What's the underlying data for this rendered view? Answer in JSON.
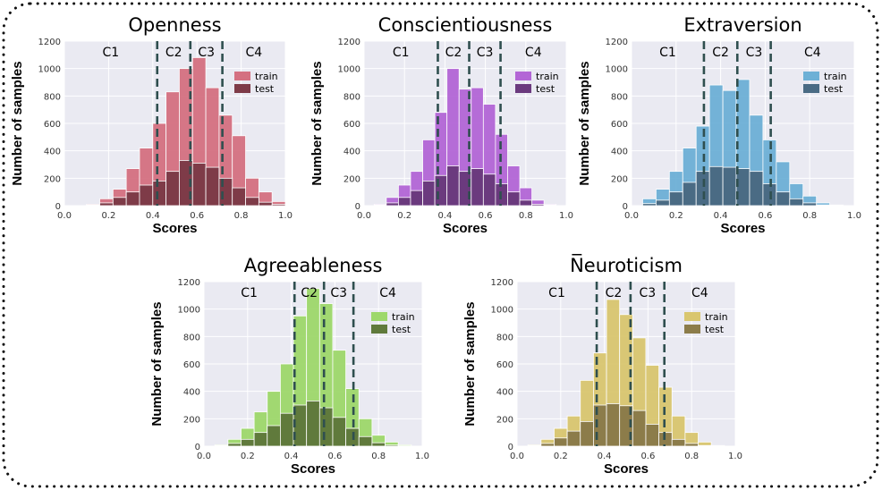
{
  "chart_data": [
    {
      "type": "bar",
      "title": "Openness",
      "xlabel": "Scores",
      "ylabel": "Number of samples",
      "xlim": [
        0.0,
        1.0
      ],
      "ylim": [
        0,
        1200
      ],
      "xticks": [
        "0.0",
        "0.2",
        "0.4",
        "0.6",
        "0.8",
        "1.0"
      ],
      "yticks": [
        "0",
        "200",
        "400",
        "600",
        "800",
        "1000",
        "1200"
      ],
      "bin_edges": [
        0.1,
        0.16,
        0.22,
        0.28,
        0.34,
        0.4,
        0.46,
        0.52,
        0.58,
        0.64,
        0.7,
        0.76,
        0.82,
        0.88,
        0.94,
        1.0
      ],
      "series": [
        {
          "name": "train",
          "color": "#d47081",
          "values": [
            10,
            50,
            120,
            270,
            420,
            600,
            830,
            1000,
            1080,
            860,
            660,
            510,
            200,
            100,
            30
          ]
        },
        {
          "name": "test",
          "color": "#7e3b48",
          "values": [
            5,
            20,
            60,
            100,
            150,
            180,
            250,
            330,
            310,
            280,
            200,
            130,
            60,
            25,
            10
          ]
        }
      ],
      "thresholds": [
        0.42,
        0.57,
        0.715
      ],
      "clusters": [
        "C1",
        "C2",
        "C3",
        "C4"
      ],
      "grid": true,
      "legend": "right"
    },
    {
      "type": "bar",
      "title": "Conscientiousness",
      "xlabel": "Scores",
      "ylabel": "Number of samples",
      "xlim": [
        0.0,
        1.0
      ],
      "ylim": [
        0,
        1200
      ],
      "xticks": [
        "0.0",
        "0.2",
        "0.4",
        "0.6",
        "0.8",
        "1.0"
      ],
      "yticks": [
        "0",
        "200",
        "400",
        "600",
        "800",
        "1000",
        "1200"
      ],
      "bin_edges": [
        0.05,
        0.11,
        0.17,
        0.23,
        0.29,
        0.35,
        0.41,
        0.47,
        0.53,
        0.59,
        0.65,
        0.71,
        0.77,
        0.83,
        0.89,
        0.95
      ],
      "series": [
        {
          "name": "train",
          "color": "#b366d6",
          "values": [
            10,
            60,
            150,
            250,
            480,
            680,
            1000,
            850,
            860,
            740,
            520,
            290,
            130,
            40,
            10
          ]
        },
        {
          "name": "test",
          "color": "#6b3a7e",
          "values": [
            5,
            20,
            60,
            110,
            180,
            220,
            290,
            250,
            270,
            230,
            160,
            100,
            40,
            10,
            5
          ]
        }
      ],
      "thresholds": [
        0.365,
        0.52,
        0.675
      ],
      "clusters": [
        "C1",
        "C2",
        "C3",
        "C4"
      ],
      "grid": true,
      "legend": "right"
    },
    {
      "type": "bar",
      "title": "Extraversion",
      "xlabel": "Scores",
      "ylabel": "Number of samples",
      "xlim": [
        0.0,
        1.0
      ],
      "ylim": [
        0,
        1200
      ],
      "xticks": [
        "0.0",
        "0.2",
        "0.4",
        "0.6",
        "0.8",
        "1.0"
      ],
      "yticks": [
        "0",
        "200",
        "400",
        "600",
        "800",
        "1000",
        "1200"
      ],
      "bin_edges": [
        0.05,
        0.11,
        0.17,
        0.23,
        0.29,
        0.35,
        0.41,
        0.47,
        0.53,
        0.59,
        0.65,
        0.71,
        0.77,
        0.83,
        0.89,
        0.95
      ],
      "series": [
        {
          "name": "train",
          "color": "#6db0d6",
          "values": [
            50,
            120,
            250,
            420,
            580,
            880,
            840,
            920,
            660,
            480,
            320,
            160,
            70,
            20,
            5
          ]
        },
        {
          "name": "test",
          "color": "#4a6b84",
          "values": [
            15,
            40,
            100,
            170,
            250,
            285,
            280,
            270,
            250,
            160,
            100,
            50,
            20,
            5,
            2
          ]
        }
      ],
      "thresholds": [
        0.325,
        0.475,
        0.625
      ],
      "clusters": [
        "C1",
        "C2",
        "C3",
        "C4"
      ],
      "grid": true,
      "legend": "right"
    },
    {
      "type": "bar",
      "title": "Agreeableness",
      "xlabel": "Scores",
      "ylabel": "Number of samples",
      "xlim": [
        0.0,
        1.0
      ],
      "ylim": [
        0,
        1200
      ],
      "xticks": [
        "0.0",
        "0.2",
        "0.4",
        "0.6",
        "0.8",
        "1.0"
      ],
      "yticks": [
        "0",
        "200",
        "400",
        "600",
        "800",
        "1000",
        "1200"
      ],
      "bin_edges": [
        0.05,
        0.11,
        0.17,
        0.23,
        0.29,
        0.35,
        0.41,
        0.47,
        0.53,
        0.59,
        0.65,
        0.71,
        0.77,
        0.83,
        0.89,
        0.95
      ],
      "series": [
        {
          "name": "train",
          "color": "#9ed86b",
          "values": [
            10,
            50,
            130,
            250,
            400,
            600,
            950,
            1150,
            1040,
            700,
            420,
            200,
            80,
            30,
            10
          ]
        },
        {
          "name": "test",
          "color": "#607a3c",
          "values": [
            5,
            20,
            50,
            100,
            150,
            240,
            300,
            330,
            280,
            210,
            130,
            70,
            25,
            8,
            3
          ]
        }
      ],
      "thresholds": [
        0.415,
        0.55,
        0.685
      ],
      "clusters": [
        "C1",
        "C2",
        "C3",
        "C4"
      ],
      "grid": true,
      "legend": "right"
    },
    {
      "type": "bar",
      "title": "N̅euroticism",
      "xlabel": "Scores",
      "ylabel": "Number of samples",
      "xlim": [
        0.0,
        1.0
      ],
      "ylim": [
        0,
        1200
      ],
      "xticks": [
        "0.0",
        "0.2",
        "0.4",
        "0.6",
        "0.8",
        "1.0"
      ],
      "yticks": [
        "0",
        "200",
        "400",
        "600",
        "800",
        "1000",
        "1200"
      ],
      "bin_edges": [
        0.05,
        0.11,
        0.17,
        0.23,
        0.29,
        0.35,
        0.41,
        0.47,
        0.53,
        0.59,
        0.65,
        0.71,
        0.77,
        0.83,
        0.89,
        0.95
      ],
      "series": [
        {
          "name": "train",
          "color": "#d9c66f",
          "values": [
            10,
            50,
            130,
            220,
            480,
            680,
            1070,
            960,
            790,
            590,
            430,
            220,
            100,
            30,
            5
          ]
        },
        {
          "name": "test",
          "color": "#8c7c4a",
          "values": [
            5,
            20,
            60,
            110,
            180,
            300,
            310,
            295,
            260,
            160,
            100,
            50,
            20,
            5,
            2
          ]
        }
      ],
      "thresholds": [
        0.365,
        0.52,
        0.675
      ],
      "clusters": [
        "C1",
        "C2",
        "C3",
        "C4"
      ],
      "grid": true,
      "legend": "right"
    }
  ]
}
